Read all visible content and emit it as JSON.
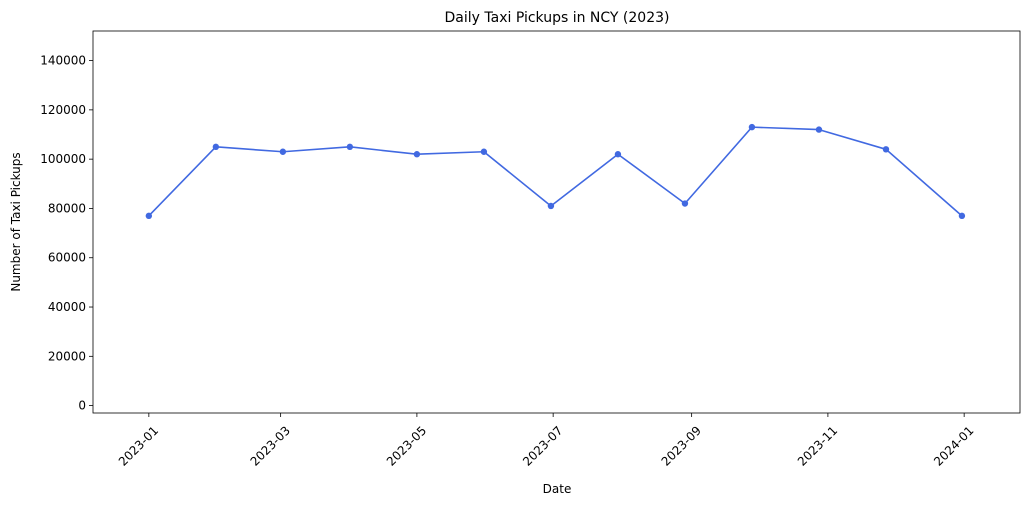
{
  "chart_data": {
    "type": "line",
    "title": "Daily Taxi Pickups in NCY (2023)",
    "xlabel": "Date",
    "ylabel": "Number of Taxi Pickups",
    "xlim": [
      "2022-12-07",
      "2024-01-26"
    ],
    "ylim": [
      -3000,
      152000
    ],
    "x_ticks": [
      "2023-01",
      "2023-03",
      "2023-05",
      "2023-07",
      "2023-09",
      "2023-11",
      "2024-01"
    ],
    "y_ticks": [
      0,
      20000,
      40000,
      60000,
      80000,
      100000,
      120000,
      140000
    ],
    "y_tick_labels": [
      "0",
      "20000",
      "40000",
      "60000",
      "80000",
      "100000",
      "120000",
      "140000"
    ],
    "grid": false,
    "legend": "none",
    "line_color": "#4169e1",
    "marker_color": "#4169e1",
    "series": [
      {
        "x": [
          "2023-01-01",
          "2023-01-31",
          "2023-03-02",
          "2023-04-01",
          "2023-05-01",
          "2023-05-31",
          "2023-06-30",
          "2023-07-30",
          "2023-08-29",
          "2023-09-28",
          "2023-10-28",
          "2023-11-27",
          "2023-12-31"
        ],
        "values": [
          77000,
          105000,
          103000,
          105000,
          102000,
          103000,
          81000,
          102000,
          82000,
          113000,
          112000,
          104000,
          77000
        ]
      }
    ]
  }
}
